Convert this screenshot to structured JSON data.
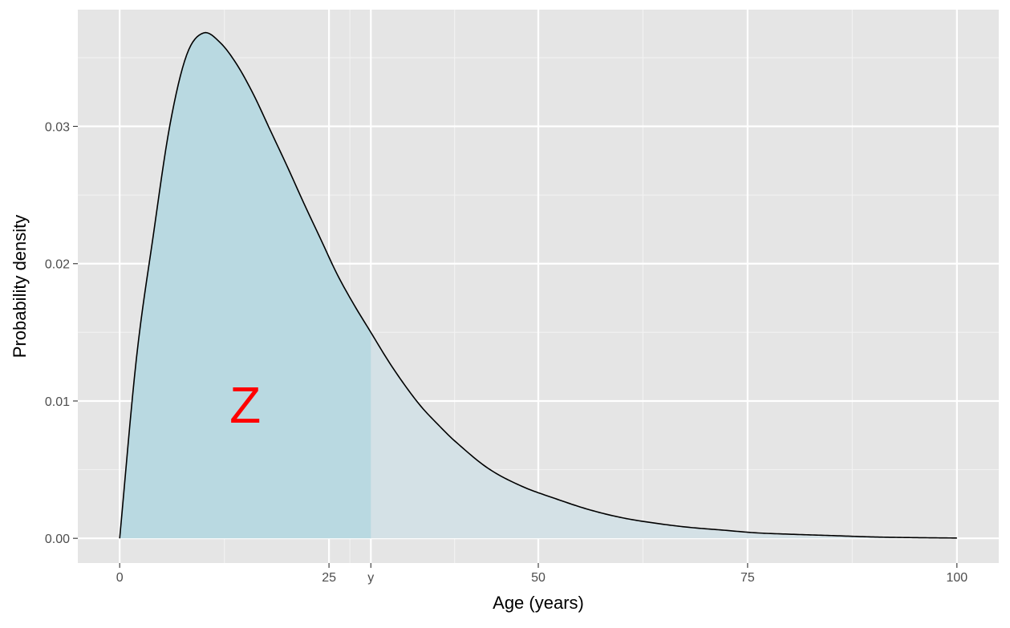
{
  "chart_data": {
    "type": "area",
    "title": "",
    "xlabel": "Age (years)",
    "ylabel": "Probability density",
    "xlim": [
      -5,
      105
    ],
    "ylim": [
      -0.0018,
      0.0385
    ],
    "x_ticks": [
      {
        "value": 0,
        "label": "0"
      },
      {
        "value": 25,
        "label": "25"
      },
      {
        "value": 30,
        "label": "y"
      },
      {
        "value": 50,
        "label": "50"
      },
      {
        "value": 75,
        "label": "75"
      },
      {
        "value": 100,
        "label": "100"
      }
    ],
    "x_major_grid": [
      0,
      25,
      30,
      50,
      75,
      100
    ],
    "x_minor_grid": [
      12.5,
      27.5,
      40,
      62.5,
      87.5
    ],
    "y_ticks": [
      {
        "value": 0.0,
        "label": "0.00"
      },
      {
        "value": 0.01,
        "label": "0.01"
      },
      {
        "value": 0.02,
        "label": "0.02"
      },
      {
        "value": 0.03,
        "label": "0.03"
      }
    ],
    "y_minor_grid": [
      0.005,
      0.015,
      0.025,
      0.035
    ],
    "grid": true,
    "series": [
      {
        "x": [
          0,
          2,
          4,
          6,
          8,
          10,
          12,
          14,
          16,
          18,
          20,
          22,
          24,
          26,
          28,
          30,
          32,
          34,
          36,
          38,
          40,
          44,
          48,
          52,
          56,
          60,
          64,
          68,
          72,
          76,
          80,
          85,
          90,
          95,
          100
        ],
        "y": [
          0.0,
          0.0131,
          0.022,
          0.0301,
          0.0352,
          0.0368,
          0.0361,
          0.0345,
          0.0323,
          0.0297,
          0.0271,
          0.0244,
          0.0218,
          0.0192,
          0.017,
          0.015,
          0.013,
          0.0112,
          0.0096,
          0.0083,
          0.0071,
          0.0051,
          0.0038,
          0.0029,
          0.0021,
          0.0015,
          0.0011,
          0.0008,
          0.0006,
          0.0004,
          0.0003,
          0.0002,
          0.0001,
          5e-05,
          2e-05
        ]
      }
    ],
    "shaded_region": {
      "from": 0,
      "to": 30
    },
    "annotation": {
      "text": "Z",
      "x": 15,
      "y": 0.0097
    },
    "colors": {
      "panel_background": "#e5e5e5",
      "grid_major": "#ffffff",
      "grid_minor": "#f2f2f2",
      "fill_full": "#d4e1e6",
      "fill_shaded": "#b9d9e1",
      "line": "#000000",
      "annotation": "#ff0000"
    }
  }
}
